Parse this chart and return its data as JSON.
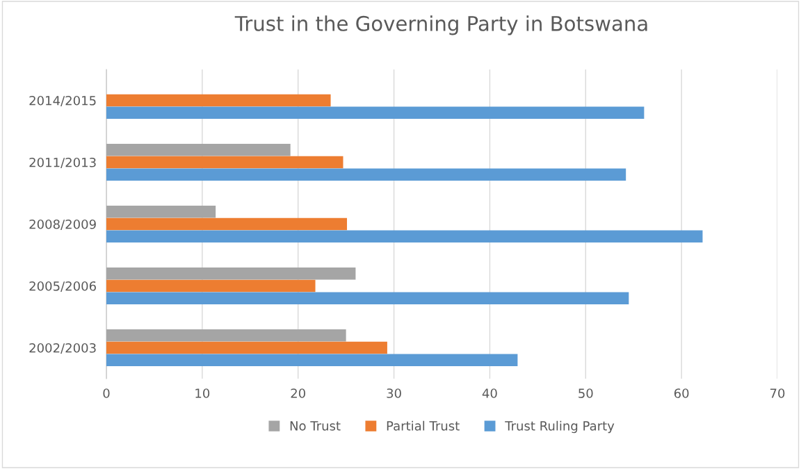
{
  "chart_data": {
    "type": "bar",
    "orientation": "horizontal",
    "title": "Trust in the Governing Party in Botswana",
    "categories": [
      "2014/2015",
      "2011/2013",
      "2008/2009",
      "2005/2006",
      "2002/2003"
    ],
    "series": [
      {
        "name": "No Trust",
        "color": "#a5a5a5",
        "values": [
          null,
          19.2,
          11.4,
          26.0,
          25.0
        ]
      },
      {
        "name": "Partial Trust",
        "color": "#ed7d31",
        "values": [
          23.4,
          24.7,
          25.1,
          21.8,
          29.3
        ]
      },
      {
        "name": "Trust Ruling Party",
        "color": "#5b9bd5",
        "values": [
          56.1,
          54.2,
          62.2,
          54.5,
          42.9
        ]
      }
    ],
    "xlim": [
      0,
      70
    ],
    "xticks": [
      0,
      10,
      20,
      30,
      40,
      50,
      60,
      70
    ],
    "grid": "x",
    "legend": "bottom"
  }
}
